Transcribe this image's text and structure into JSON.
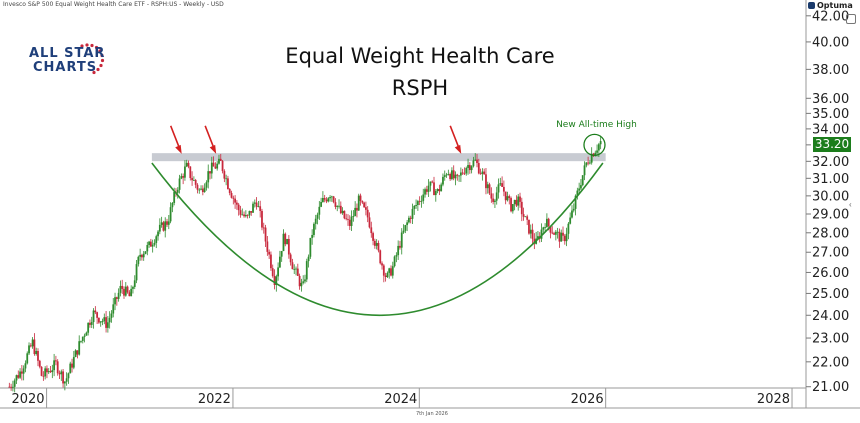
{
  "header": {
    "source_text": "Invesco S&P 500 Equal Weight Health Care ETF - RSPH:US - Weekly - USD"
  },
  "brand": {
    "name": "Optuma"
  },
  "logo": {
    "line1": "ALL STAR",
    "line2": "CHARTS"
  },
  "footer": {
    "date_text": "7th Jan 2026"
  },
  "chart_data": {
    "type": "candlestick",
    "title": "Equal Weight Health Care",
    "subtitle": "RSPH",
    "xlabel": "",
    "ylabel": "",
    "xlim": [
      2019.5,
      2028.15
    ],
    "ylim": [
      20.95,
      42.3
    ],
    "y_scale": "log",
    "grid": false,
    "x_ticks": [
      2020,
      2022,
      2024,
      2026,
      2028
    ],
    "x_tick_labels": [
      "2020",
      "2022",
      "2024",
      "2026",
      "2028"
    ],
    "y_ticks": [
      21,
      22,
      23,
      24,
      25,
      26,
      27,
      28,
      29,
      30,
      31,
      32,
      33,
      34,
      35,
      36,
      38,
      40,
      42
    ],
    "y_tick_labels": [
      "21.00",
      "22.00",
      "23.00",
      "24.00",
      "25.00",
      "26.00",
      "27.00",
      "28.00",
      "29.00",
      "30.00",
      "31.00",
      "32.00",
      "33.00",
      "34.00",
      "35.00",
      "36.00",
      "38.00",
      "40.00",
      "42.00"
    ],
    "last_price": 33.2,
    "last_price_label": "33.20",
    "colors": {
      "up": "#2e8b2e",
      "down": "#c8283c",
      "resistance_band": "#c8cbd2",
      "bowl": "#2e8b2e",
      "arrow": "#d42020",
      "price_tag": "#1c7d1c",
      "annotation": "#1c7d1c"
    },
    "resistance_level": 32.25,
    "resistance_x_range": [
      2021.13,
      2026.0
    ],
    "bowl": {
      "x_start": 2021.13,
      "y_start": 31.9,
      "x_low": 2023.6,
      "y_low": 24.0,
      "x_end": 2025.97,
      "y_end": 31.9
    },
    "arrows": [
      {
        "x": 2021.45,
        "y": 32.45
      },
      {
        "x": 2021.82,
        "y": 32.45
      },
      {
        "x": 2024.45,
        "y": 32.45
      }
    ],
    "annotation": {
      "text": "New All-time High",
      "x": 2025.88,
      "y": 33.0
    },
    "price_anchors": [
      [
        2019.6,
        21.0
      ],
      [
        2019.72,
        21.6
      ],
      [
        2019.85,
        22.8
      ],
      [
        2019.95,
        21.4
      ],
      [
        2020.1,
        21.9
      ],
      [
        2020.2,
        21.2
      ],
      [
        2020.35,
        22.7
      ],
      [
        2020.5,
        24.1
      ],
      [
        2020.65,
        23.6
      ],
      [
        2020.8,
        25.3
      ],
      [
        2020.9,
        24.8
      ],
      [
        2021.0,
        26.9
      ],
      [
        2021.1,
        27.3
      ],
      [
        2021.2,
        28.1
      ],
      [
        2021.3,
        28.6
      ],
      [
        2021.4,
        30.5
      ],
      [
        2021.5,
        31.7
      ],
      [
        2021.55,
        31.1
      ],
      [
        2021.65,
        30.2
      ],
      [
        2021.75,
        31.5
      ],
      [
        2021.87,
        31.9
      ],
      [
        2021.95,
        30.6
      ],
      [
        2022.05,
        29.3
      ],
      [
        2022.15,
        28.7
      ],
      [
        2022.25,
        29.8
      ],
      [
        2022.35,
        27.6
      ],
      [
        2022.45,
        25.6
      ],
      [
        2022.55,
        27.9
      ],
      [
        2022.65,
        26.2
      ],
      [
        2022.75,
        25.2
      ],
      [
        2022.85,
        28.0
      ],
      [
        2022.95,
        29.6
      ],
      [
        2023.05,
        30.2
      ],
      [
        2023.15,
        29.1
      ],
      [
        2023.25,
        28.4
      ],
      [
        2023.35,
        29.7
      ],
      [
        2023.45,
        28.8
      ],
      [
        2023.55,
        27.1
      ],
      [
        2023.65,
        25.7
      ],
      [
        2023.72,
        26.3
      ],
      [
        2023.8,
        27.6
      ],
      [
        2023.9,
        28.9
      ],
      [
        2024.0,
        29.8
      ],
      [
        2024.1,
        30.6
      ],
      [
        2024.2,
        30.2
      ],
      [
        2024.3,
        31.5
      ],
      [
        2024.4,
        30.8
      ],
      [
        2024.5,
        31.7
      ],
      [
        2024.6,
        32.0
      ],
      [
        2024.68,
        31.2
      ],
      [
        2024.78,
        29.8
      ],
      [
        2024.88,
        30.6
      ],
      [
        2024.98,
        29.4
      ],
      [
        2025.05,
        29.8
      ],
      [
        2025.15,
        28.5
      ],
      [
        2025.25,
        27.4
      ],
      [
        2025.35,
        28.6
      ],
      [
        2025.45,
        28.0
      ],
      [
        2025.55,
        27.6
      ],
      [
        2025.65,
        29.2
      ],
      [
        2025.72,
        30.6
      ],
      [
        2025.8,
        32.0
      ],
      [
        2025.87,
        32.6
      ],
      [
        2025.95,
        33.2
      ]
    ]
  }
}
